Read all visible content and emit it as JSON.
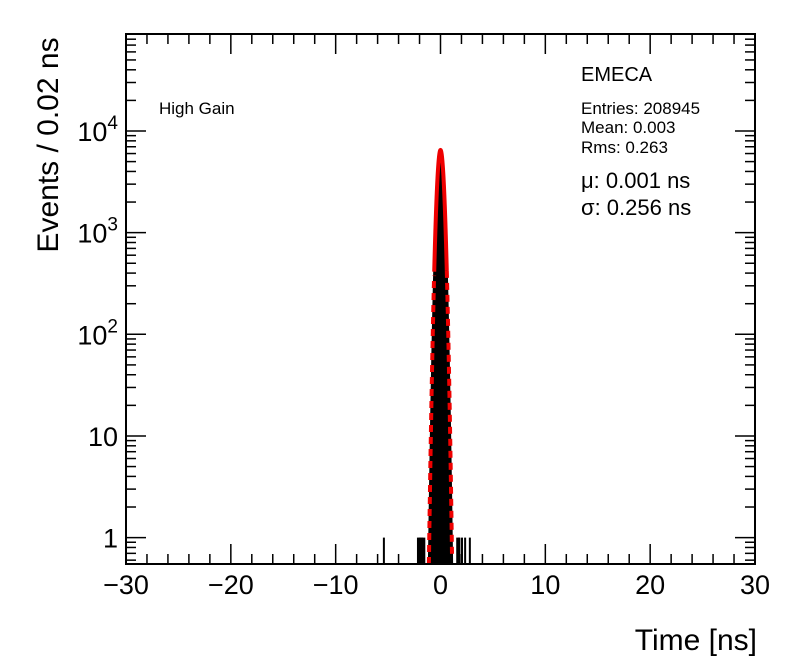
{
  "chart_data": {
    "type": "line",
    "xlabel": "Time [ns]",
    "ylabel": "Events / 0.02 ns",
    "log_y": true,
    "xlim": [
      -30,
      30
    ],
    "ylim": [
      0.55,
      90000
    ],
    "x_ticks": [
      -30,
      -20,
      -10,
      0,
      10,
      20,
      30
    ],
    "x_tick_labels": [
      "−30",
      "−20",
      "−10",
      "0",
      "10",
      "20",
      "30"
    ],
    "y_ticks": [
      1,
      10,
      100,
      1000,
      10000
    ],
    "y_tick_labels": [
      {
        "base": "1",
        "exp": ""
      },
      {
        "base": "10",
        "exp": ""
      },
      {
        "base": "10",
        "exp": "2"
      },
      {
        "base": "10",
        "exp": "3"
      },
      {
        "base": "10",
        "exp": "4"
      }
    ],
    "annotation_left": "High Gain",
    "stats": {
      "title": "EMECA",
      "entries": "Entries: 208945",
      "mean": "Mean: 0.003",
      "rms": "Rms: 0.263",
      "mu": "μ: 0.001 ns",
      "sigma": "σ: 0.256 ns"
    },
    "fit": {
      "amplitude": 6500,
      "mean": 0.001,
      "sigma": 0.256,
      "solid_range": [
        -0.6,
        0.6
      ],
      "color": "#ee0000"
    },
    "histogram": {
      "color": "#000000",
      "isolated_spikes": [
        {
          "x": -5.4,
          "value": 1
        },
        {
          "x": -2.15,
          "value": 1
        },
        {
          "x": -1.95,
          "value": 1
        },
        {
          "x": -1.75,
          "value": 1
        },
        {
          "x": 1.75,
          "value": 1
        },
        {
          "x": 2.05,
          "value": 1
        },
        {
          "x": 2.35,
          "value": 1
        },
        {
          "x": 2.8,
          "value": 1
        }
      ],
      "dense_bands": [
        {
          "x_range": [
            -2.1,
            -1.45
          ],
          "value": 1
        },
        {
          "x_range": [
            1.5,
            1.9
          ],
          "value": 1
        }
      ]
    }
  }
}
